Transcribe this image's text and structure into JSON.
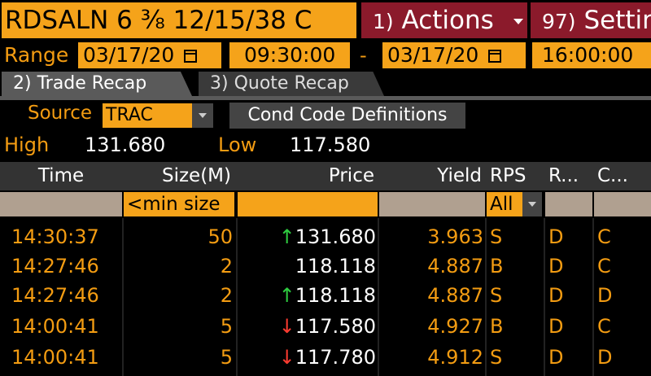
{
  "header": {
    "security": "RDSALN 6 ⅜ 12/15/38 C",
    "actions_num": "1)",
    "actions_label": "Actions",
    "settings_num": "97)",
    "settings_label": "Settin"
  },
  "range": {
    "label": "Range",
    "start_date": "03/17/20",
    "start_time": "09:30:00",
    "dash": "-",
    "end_date": "03/17/20",
    "end_time": "16:00:00"
  },
  "tabs": [
    {
      "label": "2) Trade Recap"
    },
    {
      "label": "3) Quote Recap"
    }
  ],
  "source": {
    "label": "Source",
    "value": "TRAC",
    "cond_button": "Cond Code Definitions"
  },
  "stats": {
    "high_label": "High",
    "high_value": "131.680",
    "low_label": "Low",
    "low_value": "117.580"
  },
  "columns": {
    "time": "Time",
    "size": "Size(M)",
    "price": "Price",
    "yield": "Yield",
    "rps": "RPS",
    "r": "R...",
    "c": "C..."
  },
  "filters": {
    "size_placeholder": "<min size",
    "rps_value": "All"
  },
  "rows": [
    {
      "time": "14:30:37",
      "size": "50",
      "arrow": "↑",
      "price": "131.680",
      "yield": "3.963",
      "rps": "S",
      "r": "D",
      "c": "C"
    },
    {
      "time": "14:27:46",
      "size": "2",
      "arrow": "",
      "price": "118.118",
      "yield": "4.887",
      "rps": "B",
      "r": "D",
      "c": "C"
    },
    {
      "time": "14:27:46",
      "size": "2",
      "arrow": "↑",
      "price": "118.118",
      "yield": "4.887",
      "rps": "S",
      "r": "D",
      "c": "D"
    },
    {
      "time": "14:00:41",
      "size": "5",
      "arrow": "↓",
      "price": "117.580",
      "yield": "4.927",
      "rps": "B",
      "r": "D",
      "c": "C"
    },
    {
      "time": "14:00:41",
      "size": "5",
      "arrow": "↓",
      "price": "117.780",
      "yield": "4.912",
      "rps": "S",
      "r": "D",
      "c": "D"
    }
  ],
  "colors": {
    "amber": "#f39c12",
    "header_red": "#8b1a2b",
    "up": "#2ecc40",
    "down": "#ff3b30"
  }
}
